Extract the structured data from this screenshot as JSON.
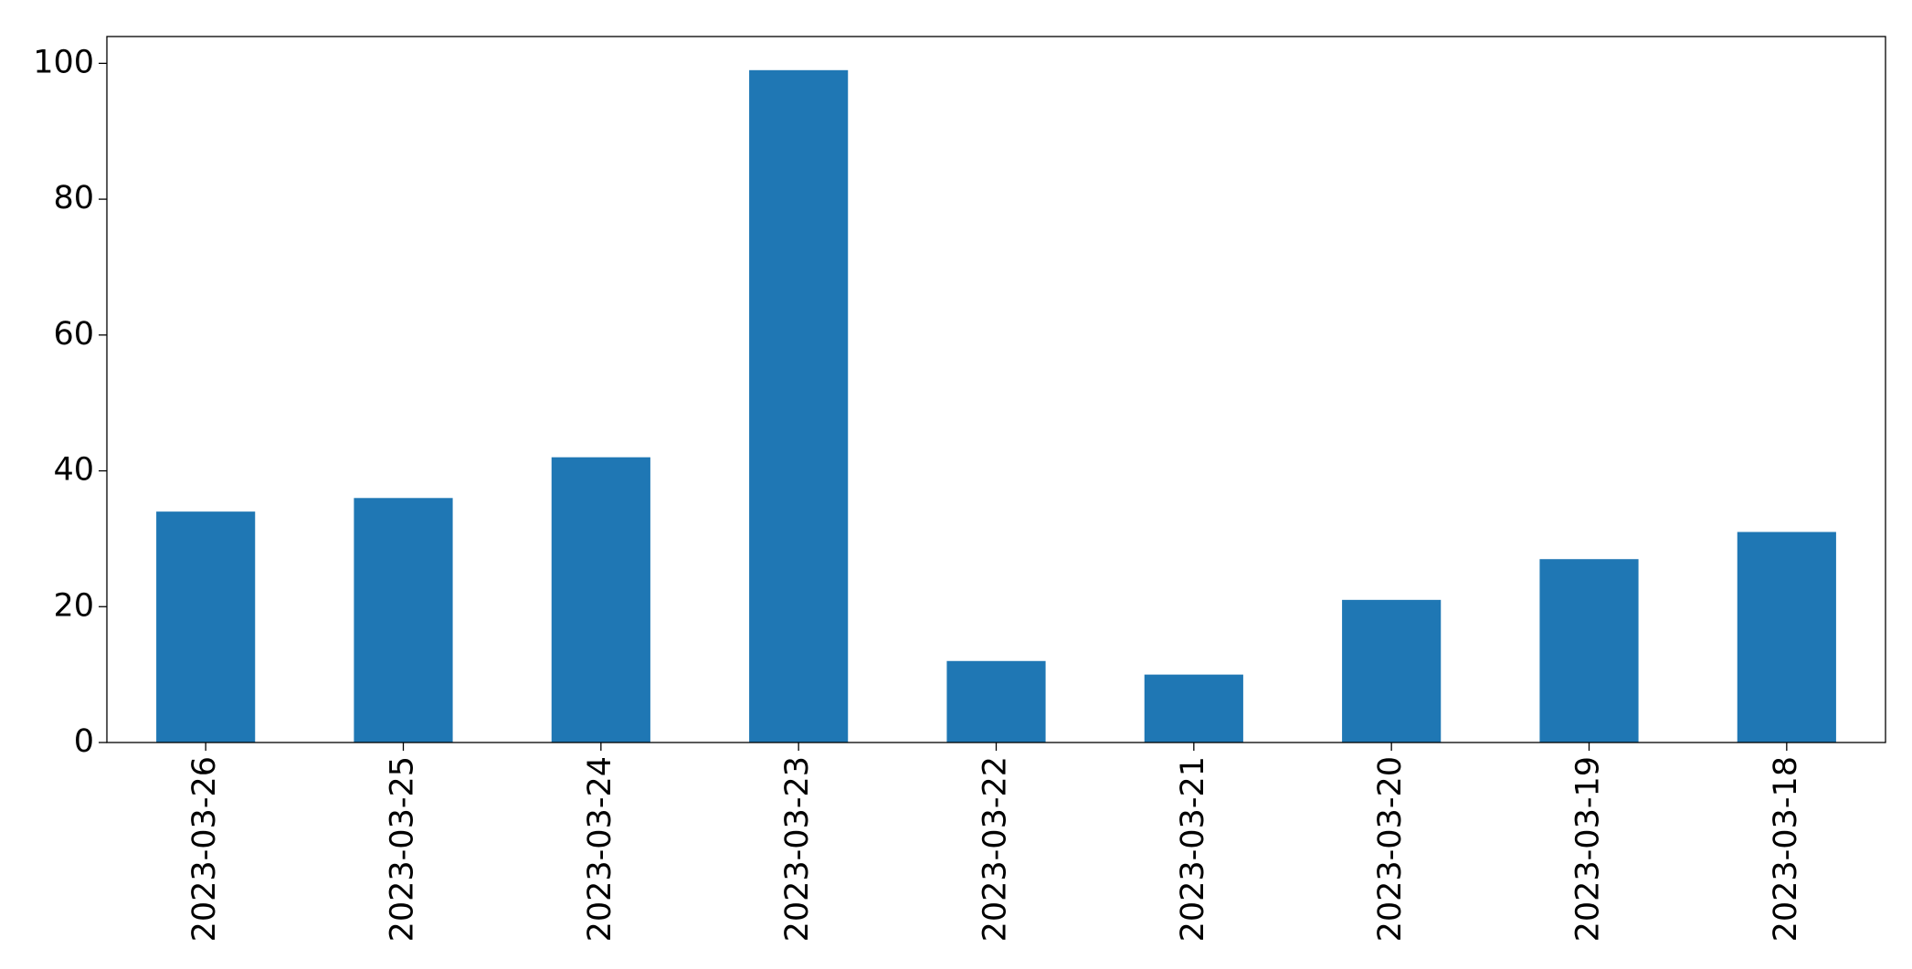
{
  "chart_data": {
    "type": "bar",
    "categories": [
      "2023-03-26",
      "2023-03-25",
      "2023-03-24",
      "2023-03-23",
      "2023-03-22",
      "2023-03-21",
      "2023-03-20",
      "2023-03-19",
      "2023-03-18"
    ],
    "values": [
      34,
      36,
      42,
      99,
      12,
      10,
      21,
      27,
      31
    ],
    "color": "#1f77b4",
    "ylim": [
      0,
      103.95
    ],
    "yticks": [
      0,
      20,
      40,
      60,
      80,
      100
    ],
    "grid": false
  }
}
